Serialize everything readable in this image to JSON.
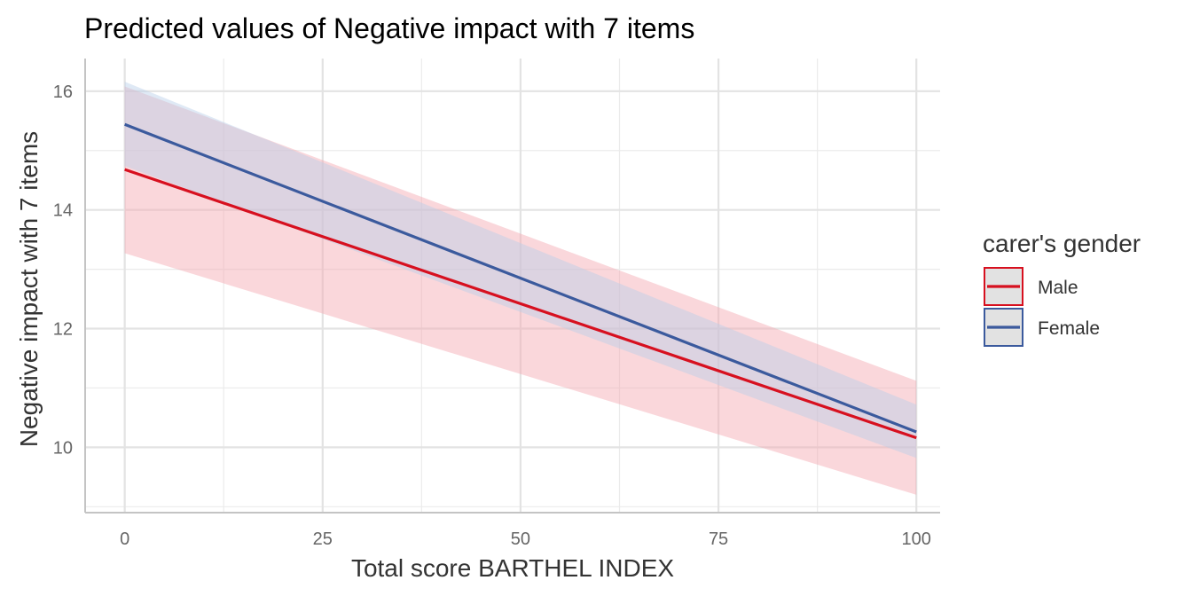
{
  "chart_data": {
    "type": "line",
    "title": "Predicted values of Negative impact with 7 items",
    "xlabel": "Total score BARTHEL INDEX",
    "ylabel": "Negative impact with 7 items",
    "xlim": [
      -5,
      103
    ],
    "ylim": [
      8.9,
      16.55
    ],
    "x_ticks": [
      0,
      25,
      50,
      75,
      100
    ],
    "x_tick_labels": [
      "0",
      "25",
      "50",
      "75",
      "100"
    ],
    "y_ticks": [
      10,
      12,
      14,
      16
    ],
    "y_tick_labels": [
      "10",
      "12",
      "14",
      "16"
    ],
    "grid": true,
    "legend": {
      "title": "carer's gender",
      "position": "right"
    },
    "series": [
      {
        "name": "Male",
        "color": "#d7101f",
        "ribbon_color": "#f4a6b0",
        "x": [
          0,
          100
        ],
        "y": [
          14.68,
          10.16
        ],
        "ci_lower": [
          13.27,
          9.2
        ],
        "ci_upper": [
          16.08,
          11.12
        ]
      },
      {
        "name": "Female",
        "color": "#3b5a9d",
        "ribbon_color": "#b9cfe8",
        "x": [
          0,
          100
        ],
        "y": [
          15.44,
          10.26
        ],
        "ci_lower": [
          14.74,
          9.82
        ],
        "ci_upper": [
          16.16,
          10.72
        ]
      }
    ]
  }
}
